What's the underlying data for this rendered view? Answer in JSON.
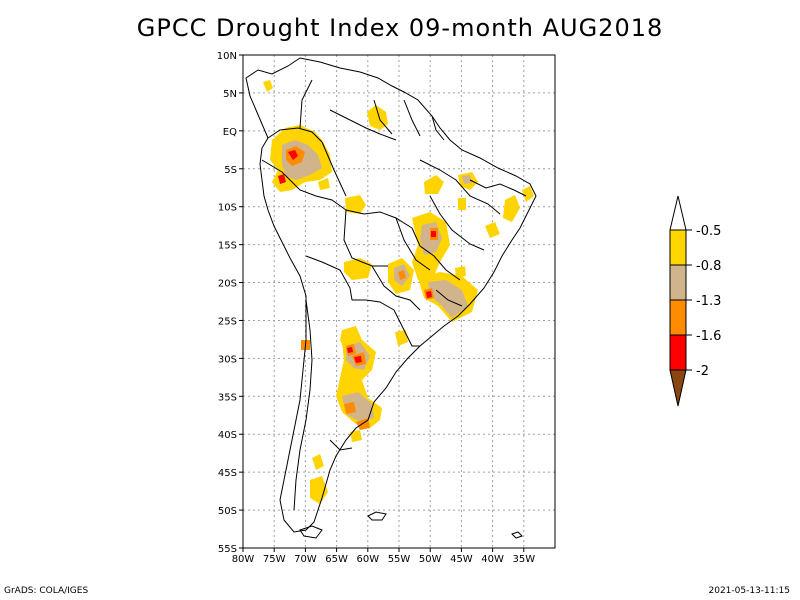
{
  "title": "GPCC Drought Index 09-month AUG2018",
  "footer": {
    "left": "GrADS: COLA/IGES",
    "right": "2021-05-13-11:15"
  },
  "map": {
    "lon_range": [
      -80,
      -30
    ],
    "lat_range": [
      -55,
      10
    ],
    "lon_ticks": [
      "80W",
      "75W",
      "70W",
      "65W",
      "60W",
      "55W",
      "50W",
      "45W",
      "40W",
      "35W"
    ],
    "lat_ticks": [
      "10N",
      "5N",
      "EQ",
      "5S",
      "10S",
      "15S",
      "20S",
      "25S",
      "30S",
      "35S",
      "40S",
      "45S",
      "50S",
      "55S"
    ]
  },
  "legend": {
    "labels": [
      "-0.5",
      "-0.8",
      "-1.3",
      "-1.6",
      "-2"
    ],
    "colors": {
      "top": "#ffffff",
      "c1": "#ffd700",
      "c2": "#d2b48c",
      "c3": "#ff8c00",
      "c4": "#ff0000",
      "bottom": "#8b4513"
    }
  },
  "colors": {
    "yellow": "#ffd400",
    "tan": "#d2b48c",
    "orange": "#ff8c00",
    "red": "#ff0000"
  }
}
